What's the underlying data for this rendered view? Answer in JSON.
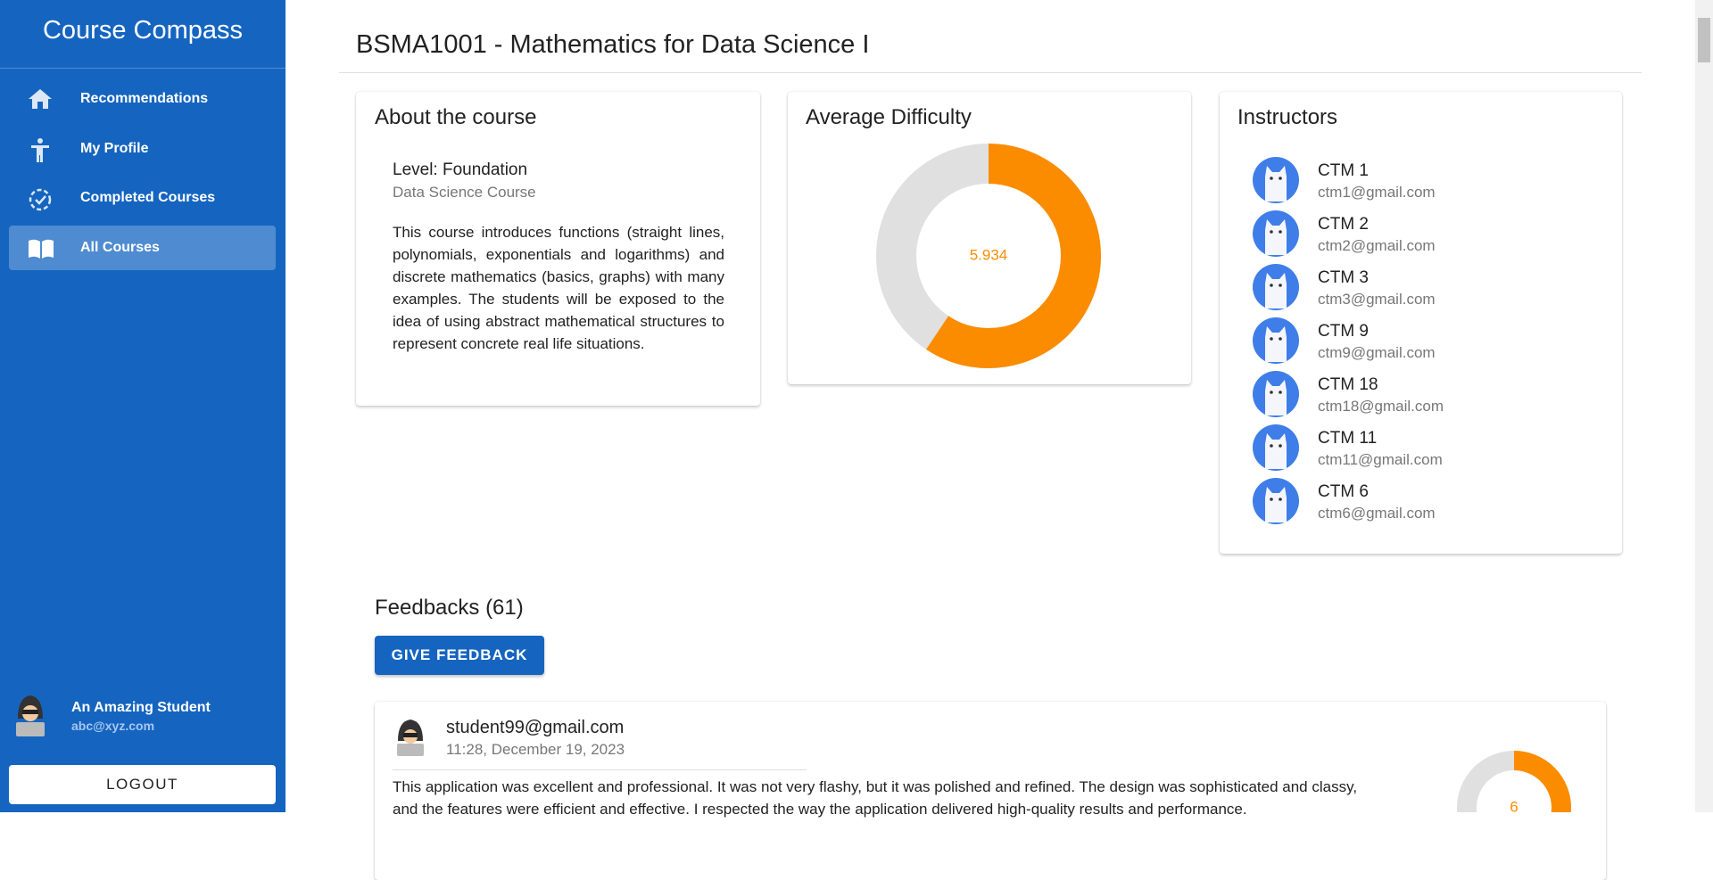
{
  "sidebar": {
    "brand": "Course Compass",
    "nav": [
      "Recommendations",
      "My Profile",
      "Completed Courses",
      "All Courses"
    ],
    "user": {
      "name": "An Amazing Student",
      "email": "abc@xyz.com"
    },
    "logout": "LOGOUT"
  },
  "course": {
    "title": "BSMA1001 - Mathematics for Data Science I",
    "about": {
      "heading": "About the course",
      "level": "Level: Foundation",
      "program": "Data Science Course",
      "description": "This course introduces functions (straight lines, polynomials, exponentials and logarithms) and discrete mathematics (basics, graphs) with many examples. The students will be exposed to the idea of using abstract mathematical structures to represent concrete real life situations."
    },
    "difficulty": {
      "heading": "Average Difficulty",
      "value": 5.934,
      "max": 10
    },
    "instructors": {
      "heading": "Instructors",
      "list": [
        {
          "name": "CTM 1",
          "email": "ctm1@gmail.com"
        },
        {
          "name": "CTM 2",
          "email": "ctm2@gmail.com"
        },
        {
          "name": "CTM 3",
          "email": "ctm3@gmail.com"
        },
        {
          "name": "CTM 9",
          "email": "ctm9@gmail.com"
        },
        {
          "name": "CTM 18",
          "email": "ctm18@gmail.com"
        },
        {
          "name": "CTM 11",
          "email": "ctm11@gmail.com"
        },
        {
          "name": "CTM 6",
          "email": "ctm6@gmail.com"
        }
      ]
    }
  },
  "feedbacks": {
    "heading": "Feedbacks (61)",
    "button": "GIVE FEEDBACK",
    "items": [
      {
        "email": "student99@gmail.com",
        "time": "11:28, December 19, 2023",
        "text": "This application was excellent and professional. It was not very flashy, but it was polished and refined. The design was sophisticated and classy, and the features were efficient and effective. I respected the way the application delivered high-quality results and performance.",
        "rating": 6,
        "max": 10
      }
    ]
  }
}
